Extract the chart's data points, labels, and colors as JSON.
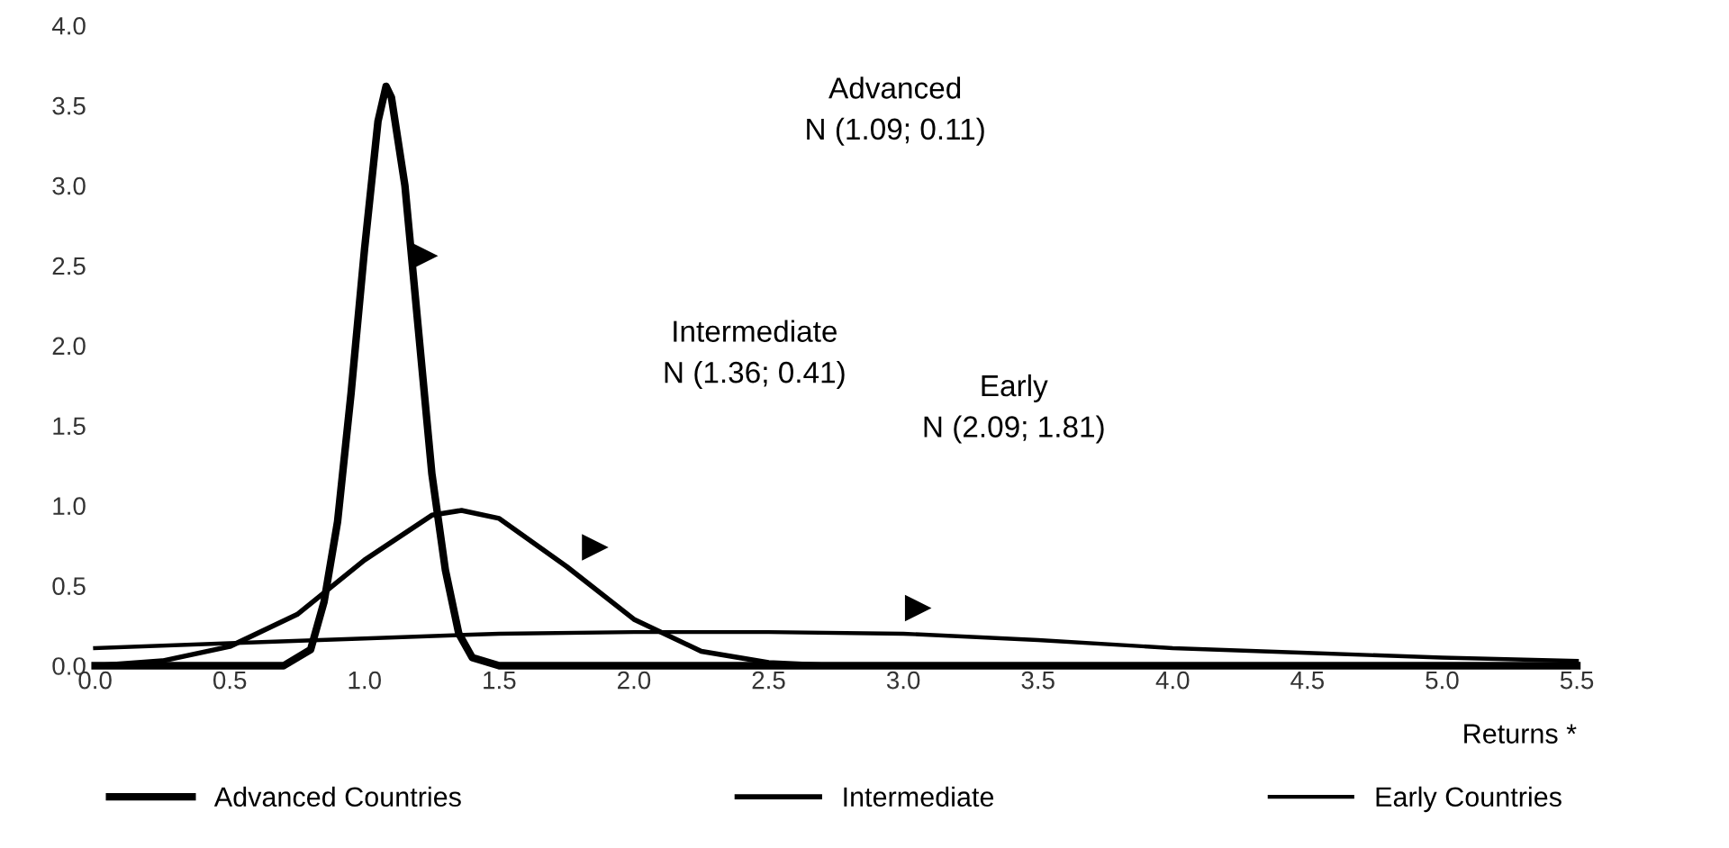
{
  "chart_data": {
    "type": "line",
    "xlabel": "Returns *",
    "xlim": [
      0,
      5.5
    ],
    "xticks": [
      {
        "value": 0,
        "label": "0.0"
      },
      {
        "value": 0.5,
        "label": "0.5"
      },
      {
        "value": 1,
        "label": "1.0"
      },
      {
        "value": 1.5,
        "label": "1.5"
      },
      {
        "value": 2,
        "label": "2.0"
      },
      {
        "value": 2.5,
        "label": "2.5"
      },
      {
        "value": 3,
        "label": "3.0"
      },
      {
        "value": 3.5,
        "label": "3.5"
      },
      {
        "value": 4,
        "label": "4.0"
      },
      {
        "value": 4.5,
        "label": "4.5"
      },
      {
        "value": 5,
        "label": "5.0"
      },
      {
        "value": 5.5,
        "label": "5.5"
      }
    ],
    "ylim": [
      0,
      4
    ],
    "yticks": [
      {
        "value": 0,
        "label": "0.0"
      },
      {
        "value": 0.5,
        "label": "0.5"
      },
      {
        "value": 1,
        "label": "1.0"
      },
      {
        "value": 1.5,
        "label": "1.5"
      },
      {
        "value": 2,
        "label": "2.0"
      },
      {
        "value": 2.5,
        "label": "2.5"
      },
      {
        "value": 3,
        "label": "3.0"
      },
      {
        "value": 3.5,
        "label": "3.5"
      },
      {
        "value": 4,
        "label": "4.0"
      }
    ],
    "grid": false,
    "legend": "bottom",
    "marker": "none",
    "line_style": "solid",
    "series": [
      {
        "name": "Advanced Countries",
        "color": "#000000",
        "x": [
          0,
          0.7,
          0.8,
          0.85,
          0.9,
          0.95,
          1.0,
          1.05,
          1.08,
          1.1,
          1.15,
          1.2,
          1.25,
          1.3,
          1.35,
          1.4,
          1.5,
          5.5
        ],
        "values": [
          0,
          0,
          0.1,
          0.4,
          0.9,
          1.7,
          2.6,
          3.4,
          3.62,
          3.55,
          3.0,
          2.1,
          1.2,
          0.6,
          0.2,
          0.05,
          0,
          0
        ]
      },
      {
        "name": "Intermediate",
        "color": "#000000",
        "x": [
          0,
          0.25,
          0.5,
          0.75,
          1.0,
          1.25,
          1.36,
          1.5,
          1.75,
          2.0,
          2.25,
          2.5,
          2.75,
          3.0,
          5.5
        ],
        "values": [
          0,
          0.03,
          0.12,
          0.32,
          0.66,
          0.94,
          0.97,
          0.92,
          0.62,
          0.29,
          0.09,
          0.02,
          0,
          0,
          0
        ]
      },
      {
        "name": "Early Countries",
        "color": "#000000",
        "x": [
          0,
          0.5,
          1.0,
          1.5,
          2.0,
          2.5,
          3.0,
          3.5,
          4.0,
          4.5,
          5.0,
          5.5
        ],
        "values": [
          0.11,
          0.14,
          0.17,
          0.2,
          0.21,
          0.21,
          0.2,
          0.16,
          0.11,
          0.08,
          0.05,
          0.03
        ]
      }
    ],
    "annotations": [
      "Advanced\nN (1.09; 0.11)",
      "Intermediate\nN (1.36; 0.41)",
      "Early\nN (2.09; 1.81)"
    ]
  }
}
